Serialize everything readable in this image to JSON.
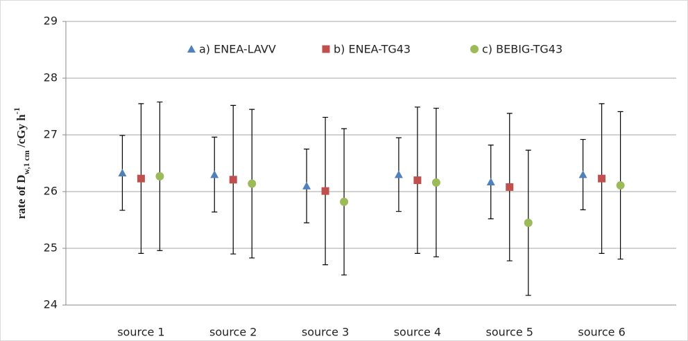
{
  "chart_data": {
    "type": "errorbar-scatter",
    "y_label": {
      "main": "rate of D",
      "subscript": "w,1 cm",
      "unit": " /cGy h",
      "superscript": "-1"
    },
    "categories": [
      "source 1",
      "source 2",
      "source 3",
      "source 4",
      "source 5",
      "source 6"
    ],
    "ylim": [
      24,
      29
    ],
    "yticks": [
      24,
      25,
      26,
      27,
      28,
      29
    ],
    "grid": true,
    "legend": "top",
    "series": [
      {
        "name": "a) ENEA-LAVV",
        "color": "#4f81bd",
        "marker": "triangle",
        "values": [
          26.33,
          26.3,
          26.1,
          26.3,
          26.17,
          26.3
        ],
        "errors": [
          0.66,
          0.66,
          0.65,
          0.65,
          0.65,
          0.62
        ]
      },
      {
        "name": "b) ENEA-TG43",
        "color": "#c0504d",
        "marker": "square",
        "values": [
          26.23,
          26.21,
          26.01,
          26.2,
          26.08,
          26.23
        ],
        "errors": [
          1.32,
          1.31,
          1.3,
          1.29,
          1.3,
          1.32
        ]
      },
      {
        "name": "c) BEBIG-TG43",
        "color": "#9bbb59",
        "marker": "circle",
        "values": [
          26.27,
          26.14,
          25.82,
          26.16,
          25.45,
          26.11
        ],
        "errors": [
          1.31,
          1.31,
          1.29,
          1.31,
          1.28,
          1.3
        ]
      }
    ]
  }
}
